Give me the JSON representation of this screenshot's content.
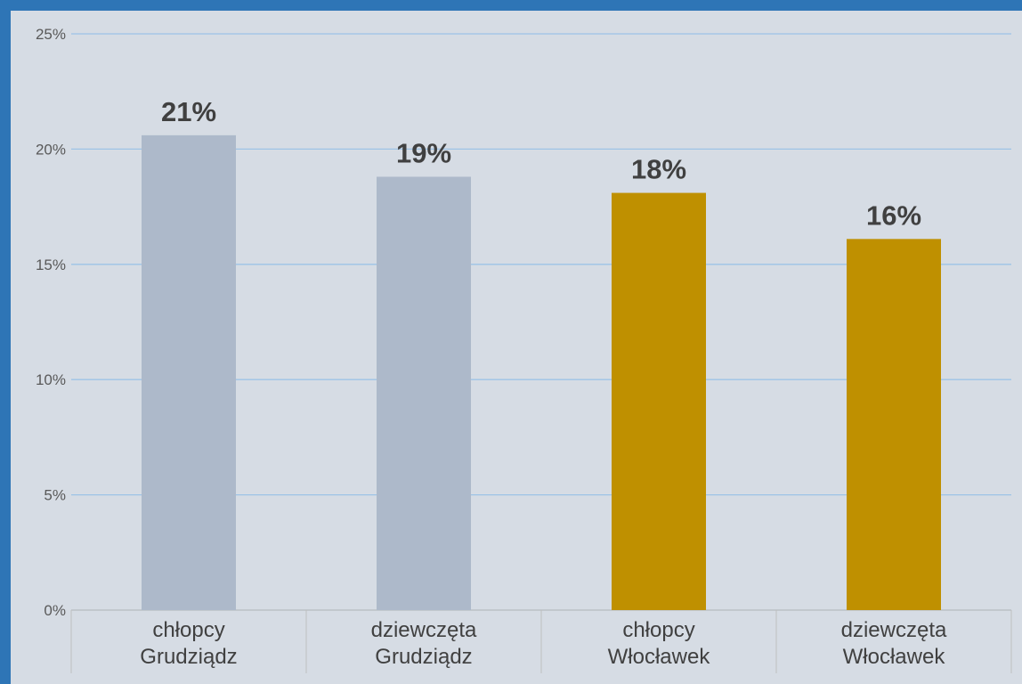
{
  "chart_data": {
    "type": "bar",
    "categories": [
      [
        "chłopcy",
        "Grudziądz"
      ],
      [
        "dziewczęta",
        "Grudziądz"
      ],
      [
        "chłopcy",
        "Włocławek"
      ],
      [
        "dziewczęta",
        "Włocławek"
      ]
    ],
    "values": [
      20.6,
      18.8,
      18.1,
      16.1
    ],
    "data_labels": [
      "21%",
      "19%",
      "18%",
      "16%"
    ],
    "bar_colors": [
      "#adb9ca",
      "#adb9ca",
      "#bf9000",
      "#bf9000"
    ],
    "ylim": [
      0,
      25
    ],
    "yticks": [
      0,
      5,
      10,
      15,
      20,
      25
    ],
    "ytick_labels": [
      "0%",
      "5%",
      "10%",
      "15%",
      "20%",
      "25%"
    ],
    "grid": true,
    "gridline_color": "#9dc3e6",
    "title": "",
    "xlabel": "",
    "ylabel": ""
  }
}
